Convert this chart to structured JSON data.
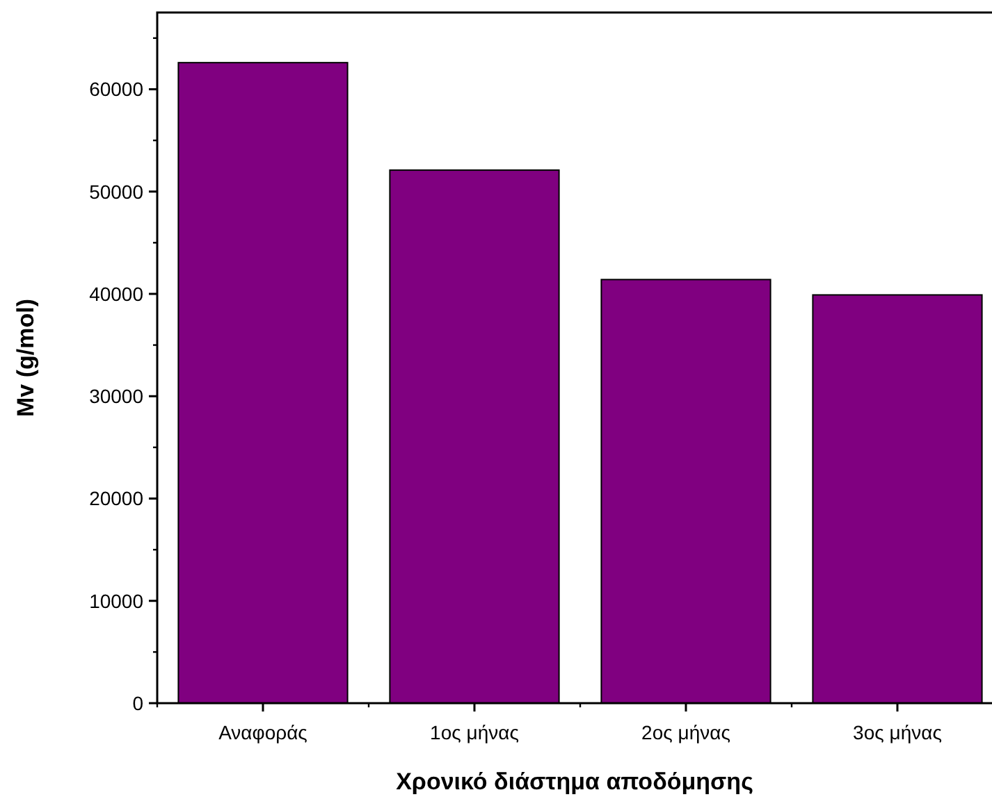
{
  "chart_data": {
    "type": "bar",
    "xlabel": "Χρονικό διάστημα αποδόμησης",
    "ylabel": "Mv (g/mol)",
    "categories": [
      "Αναφοράς",
      "1ος μήνας",
      "2ος μήνας",
      "3ος μήνας"
    ],
    "values": [
      62600,
      52100,
      41400,
      39900
    ],
    "color": "#800080",
    "ylim": [
      0,
      67500
    ],
    "yticks": [
      0,
      10000,
      20000,
      30000,
      40000,
      50000,
      60000
    ],
    "grid": false
  }
}
